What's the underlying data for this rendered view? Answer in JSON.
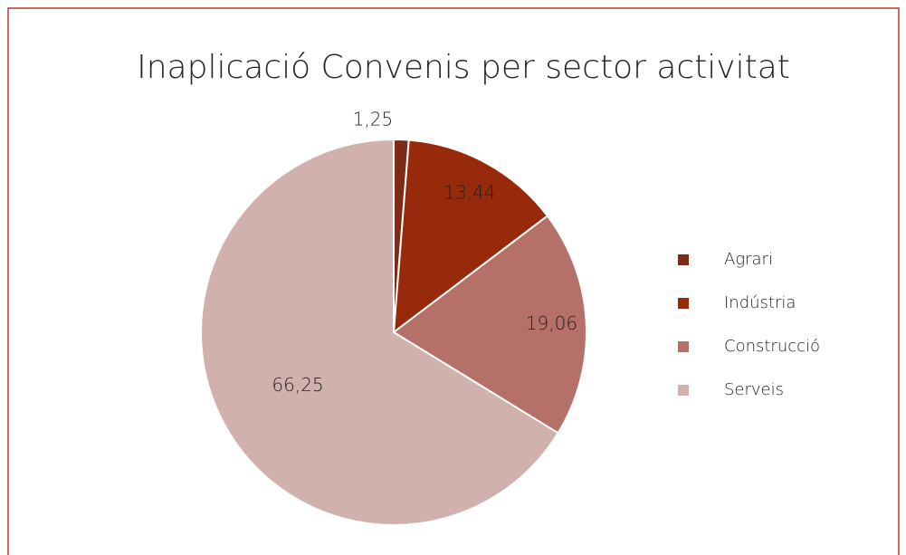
{
  "chart_data": {
    "type": "pie",
    "title": "Inaplicació Convenis per sector activitat",
    "categories": [
      "Agrari",
      "Indústria",
      "Construcció",
      "Serveis"
    ],
    "values": [
      1.25,
      13.44,
      19.06,
      66.25
    ],
    "value_labels": [
      "1,25",
      "13,44",
      "19,06",
      "66,25"
    ],
    "colors": [
      "#7d2a16",
      "#982a0c",
      "#b5706a",
      "#d1b1ad"
    ],
    "legend": "right"
  }
}
